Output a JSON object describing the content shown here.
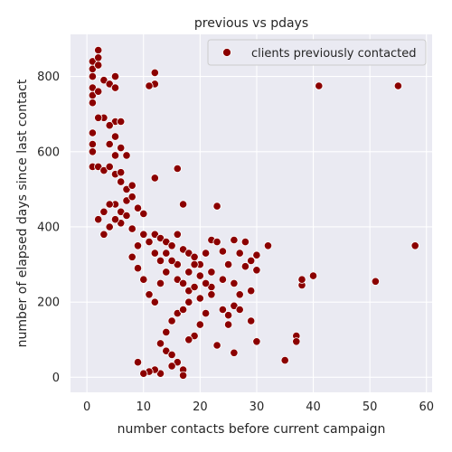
{
  "chart_data": {
    "type": "scatter",
    "title": "previous vs pdays",
    "xlabel": "number contacts before current campaign",
    "ylabel": "number of elapsed days since last contact",
    "xlim": [
      -2.9,
      61
    ],
    "ylim": [
      -40,
      912
    ],
    "xticks": [
      "0",
      "10",
      "20",
      "30",
      "40",
      "50",
      "60"
    ],
    "yticks": [
      "0",
      "200",
      "400",
      "600",
      "800"
    ],
    "grid": true,
    "legend_position": "top-right",
    "colors": {
      "background": "#eaeaf2",
      "grid": "#ffffff",
      "marker": "#8b0000",
      "marker_edge": "#ffffff"
    },
    "series": [
      {
        "name": "clients previously contacted",
        "points": [
          [
            1,
            820
          ],
          [
            1,
            840
          ],
          [
            1,
            800
          ],
          [
            2,
            870
          ],
          [
            2,
            850
          ],
          [
            2,
            830
          ],
          [
            1,
            770
          ],
          [
            1,
            750
          ],
          [
            2,
            760
          ],
          [
            1,
            730
          ],
          [
            3,
            790
          ],
          [
            4,
            780
          ],
          [
            5,
            800
          ],
          [
            5,
            770
          ],
          [
            3,
            690
          ],
          [
            2,
            690
          ],
          [
            5,
            680
          ],
          [
            4,
            670
          ],
          [
            6,
            680
          ],
          [
            4,
            620
          ],
          [
            5,
            640
          ],
          [
            6,
            610
          ],
          [
            5,
            590
          ],
          [
            7,
            590
          ],
          [
            12,
            780
          ],
          [
            12,
            810
          ],
          [
            11,
            775
          ],
          [
            41,
            775
          ],
          [
            55,
            775
          ],
          [
            1,
            650
          ],
          [
            1,
            620
          ],
          [
            1,
            600
          ],
          [
            1,
            560
          ],
          [
            2,
            560
          ],
          [
            3,
            550
          ],
          [
            4,
            560
          ],
          [
            5,
            540
          ],
          [
            6,
            545
          ],
          [
            7,
            500
          ],
          [
            8,
            510
          ],
          [
            6,
            520
          ],
          [
            7,
            470
          ],
          [
            8,
            480
          ],
          [
            9,
            450
          ],
          [
            5,
            460
          ],
          [
            16,
            555
          ],
          [
            12,
            530
          ],
          [
            17,
            460
          ],
          [
            23,
            455
          ],
          [
            10,
            435
          ],
          [
            6,
            440
          ],
          [
            12,
            380
          ],
          [
            13,
            370
          ],
          [
            14,
            360
          ],
          [
            15,
            350
          ],
          [
            12,
            330
          ],
          [
            13,
            310
          ],
          [
            16,
            380
          ],
          [
            17,
            340
          ],
          [
            18,
            330
          ],
          [
            19,
            320
          ],
          [
            20,
            300
          ],
          [
            21,
            330
          ],
          [
            22,
            365
          ],
          [
            23,
            360
          ],
          [
            24,
            335
          ],
          [
            25,
            300
          ],
          [
            26,
            365
          ],
          [
            27,
            330
          ],
          [
            28,
            360
          ],
          [
            29,
            310
          ],
          [
            30,
            325
          ],
          [
            32,
            350
          ],
          [
            28,
            295
          ],
          [
            30,
            285
          ],
          [
            26,
            250
          ],
          [
            24,
            260
          ],
          [
            22,
            240
          ],
          [
            20,
            210
          ],
          [
            18,
            230
          ],
          [
            16,
            260
          ],
          [
            14,
            280
          ],
          [
            22,
            220
          ],
          [
            21,
            170
          ],
          [
            20,
            140
          ],
          [
            19,
            110
          ],
          [
            18,
            100
          ],
          [
            24,
            180
          ],
          [
            25,
            140
          ],
          [
            26,
            190
          ],
          [
            27,
            220
          ],
          [
            29,
            230
          ],
          [
            27,
            180
          ],
          [
            29,
            150
          ],
          [
            30,
            95
          ],
          [
            23,
            85
          ],
          [
            25,
            165
          ],
          [
            26,
            65
          ],
          [
            37,
            110
          ],
          [
            37,
            95
          ],
          [
            35,
            45
          ],
          [
            38,
            245
          ],
          [
            38,
            260
          ],
          [
            40,
            270
          ],
          [
            51,
            255
          ],
          [
            58,
            350
          ],
          [
            13,
            90
          ],
          [
            14,
            70
          ],
          [
            15,
            60
          ],
          [
            16,
            40
          ],
          [
            17,
            20
          ],
          [
            17,
            5
          ],
          [
            15,
            30
          ],
          [
            13,
            10
          ],
          [
            12,
            20
          ],
          [
            11,
            15
          ],
          [
            10,
            10
          ],
          [
            9,
            40
          ],
          [
            14,
            120
          ],
          [
            15,
            150
          ],
          [
            16,
            170
          ],
          [
            17,
            180
          ],
          [
            18,
            200
          ],
          [
            19,
            240
          ],
          [
            17,
            250
          ],
          [
            18,
            280
          ],
          [
            19,
            300
          ],
          [
            20,
            270
          ],
          [
            21,
            250
          ],
          [
            22,
            280
          ],
          [
            16,
            300
          ],
          [
            15,
            310
          ],
          [
            14,
            330
          ],
          [
            13,
            250
          ],
          [
            12,
            200
          ],
          [
            11,
            220
          ],
          [
            10,
            260
          ],
          [
            9,
            290
          ],
          [
            8,
            320
          ],
          [
            9,
            350
          ],
          [
            10,
            380
          ],
          [
            11,
            360
          ],
          [
            8,
            395
          ],
          [
            7,
            430
          ],
          [
            6,
            410
          ],
          [
            5,
            420
          ],
          [
            4,
            400
          ],
          [
            3,
            380
          ],
          [
            2,
            420
          ],
          [
            3,
            440
          ],
          [
            4,
            460
          ]
        ]
      }
    ]
  }
}
